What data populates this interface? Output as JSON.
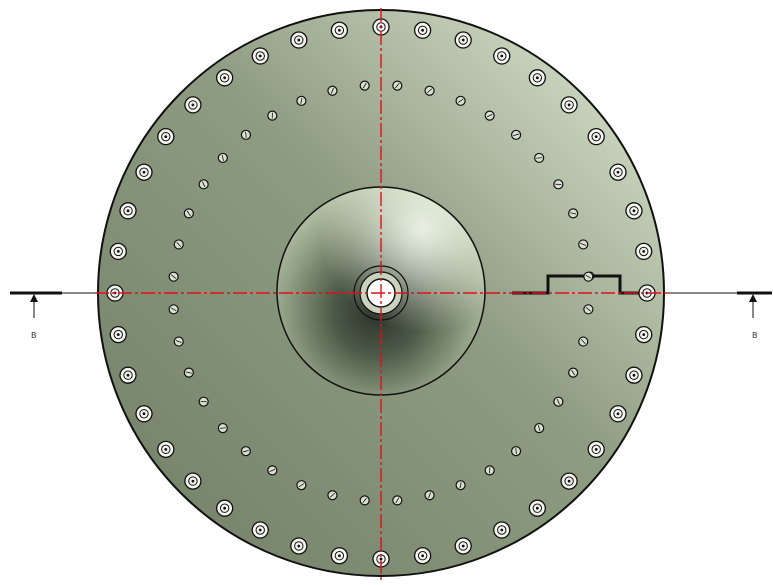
{
  "drawing": {
    "title": "",
    "outer_bolt_hole_count": 40,
    "inner_bolt_hole_count": 40,
    "section_label_left": "B",
    "section_label_right": "B",
    "colors": {
      "plate_dark": "#6f7e64",
      "plate_light": "#e3ecd8",
      "centerline": "#e0101a",
      "line": "#111111",
      "background": "#ffffff"
    }
  }
}
